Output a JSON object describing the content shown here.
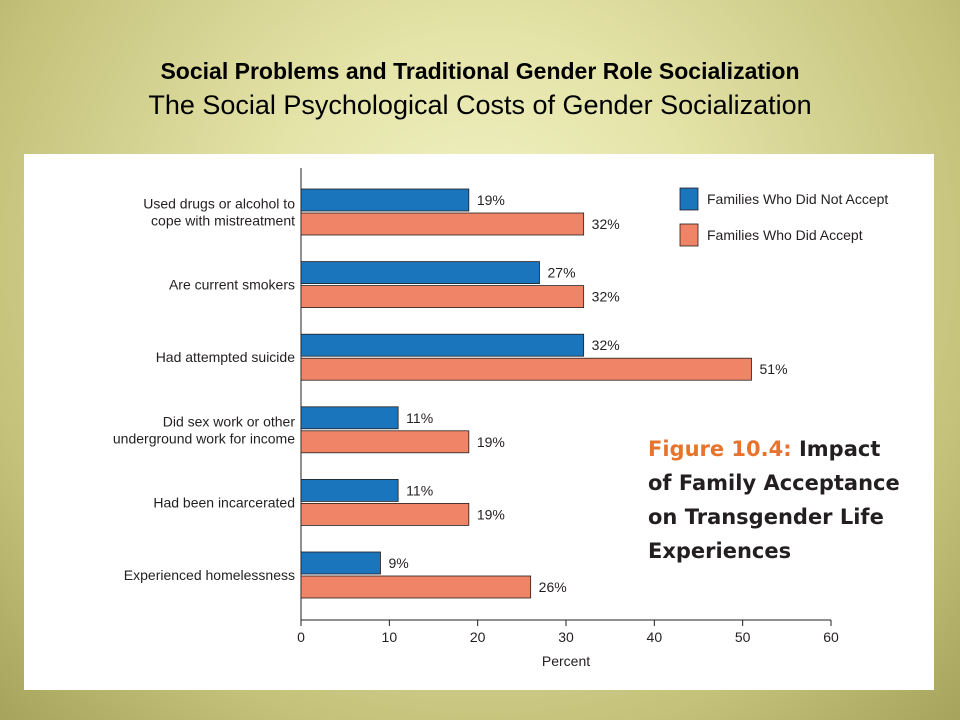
{
  "slide": {
    "title": "Social Problems and Traditional Gender Role Socialization",
    "subtitle": "The Social Psychological Costs of Gender Socialization"
  },
  "figure": {
    "number": "Figure 10.4:",
    "title_lines": [
      "Impact",
      "of Family Acceptance",
      "on Transgender Life",
      "Experiences"
    ]
  },
  "colors": {
    "not_accept": "#1b75bc",
    "accept": "#f08466",
    "figure_number": "#e8732c"
  },
  "chart_data": {
    "type": "bar",
    "orientation": "horizontal",
    "categories": [
      [
        "Used drugs or alcohol to",
        "cope with mistreatment"
      ],
      [
        "Are current smokers"
      ],
      [
        "Had attempted suicide"
      ],
      [
        "Did sex work or other",
        "underground work for income"
      ],
      [
        "Had been incarcerated"
      ],
      [
        "Experienced homelessness"
      ]
    ],
    "series": [
      {
        "name": "Families Who Did Not Accept",
        "values": [
          19,
          27,
          32,
          11,
          11,
          9
        ],
        "labels": [
          "19%",
          "27%",
          "32%",
          "11%",
          "11%",
          "9%"
        ]
      },
      {
        "name": "Families Who Did Accept",
        "values": [
          32,
          32,
          51,
          19,
          19,
          26
        ],
        "labels": [
          "32%",
          "32%",
          "51%",
          "19%",
          "19%",
          "26%"
        ]
      }
    ],
    "xlabel": "Percent",
    "xlim": [
      0,
      60
    ],
    "xticks": [
      0,
      10,
      20,
      30,
      40,
      50,
      60
    ],
    "grid": false,
    "legend": "top-right"
  }
}
